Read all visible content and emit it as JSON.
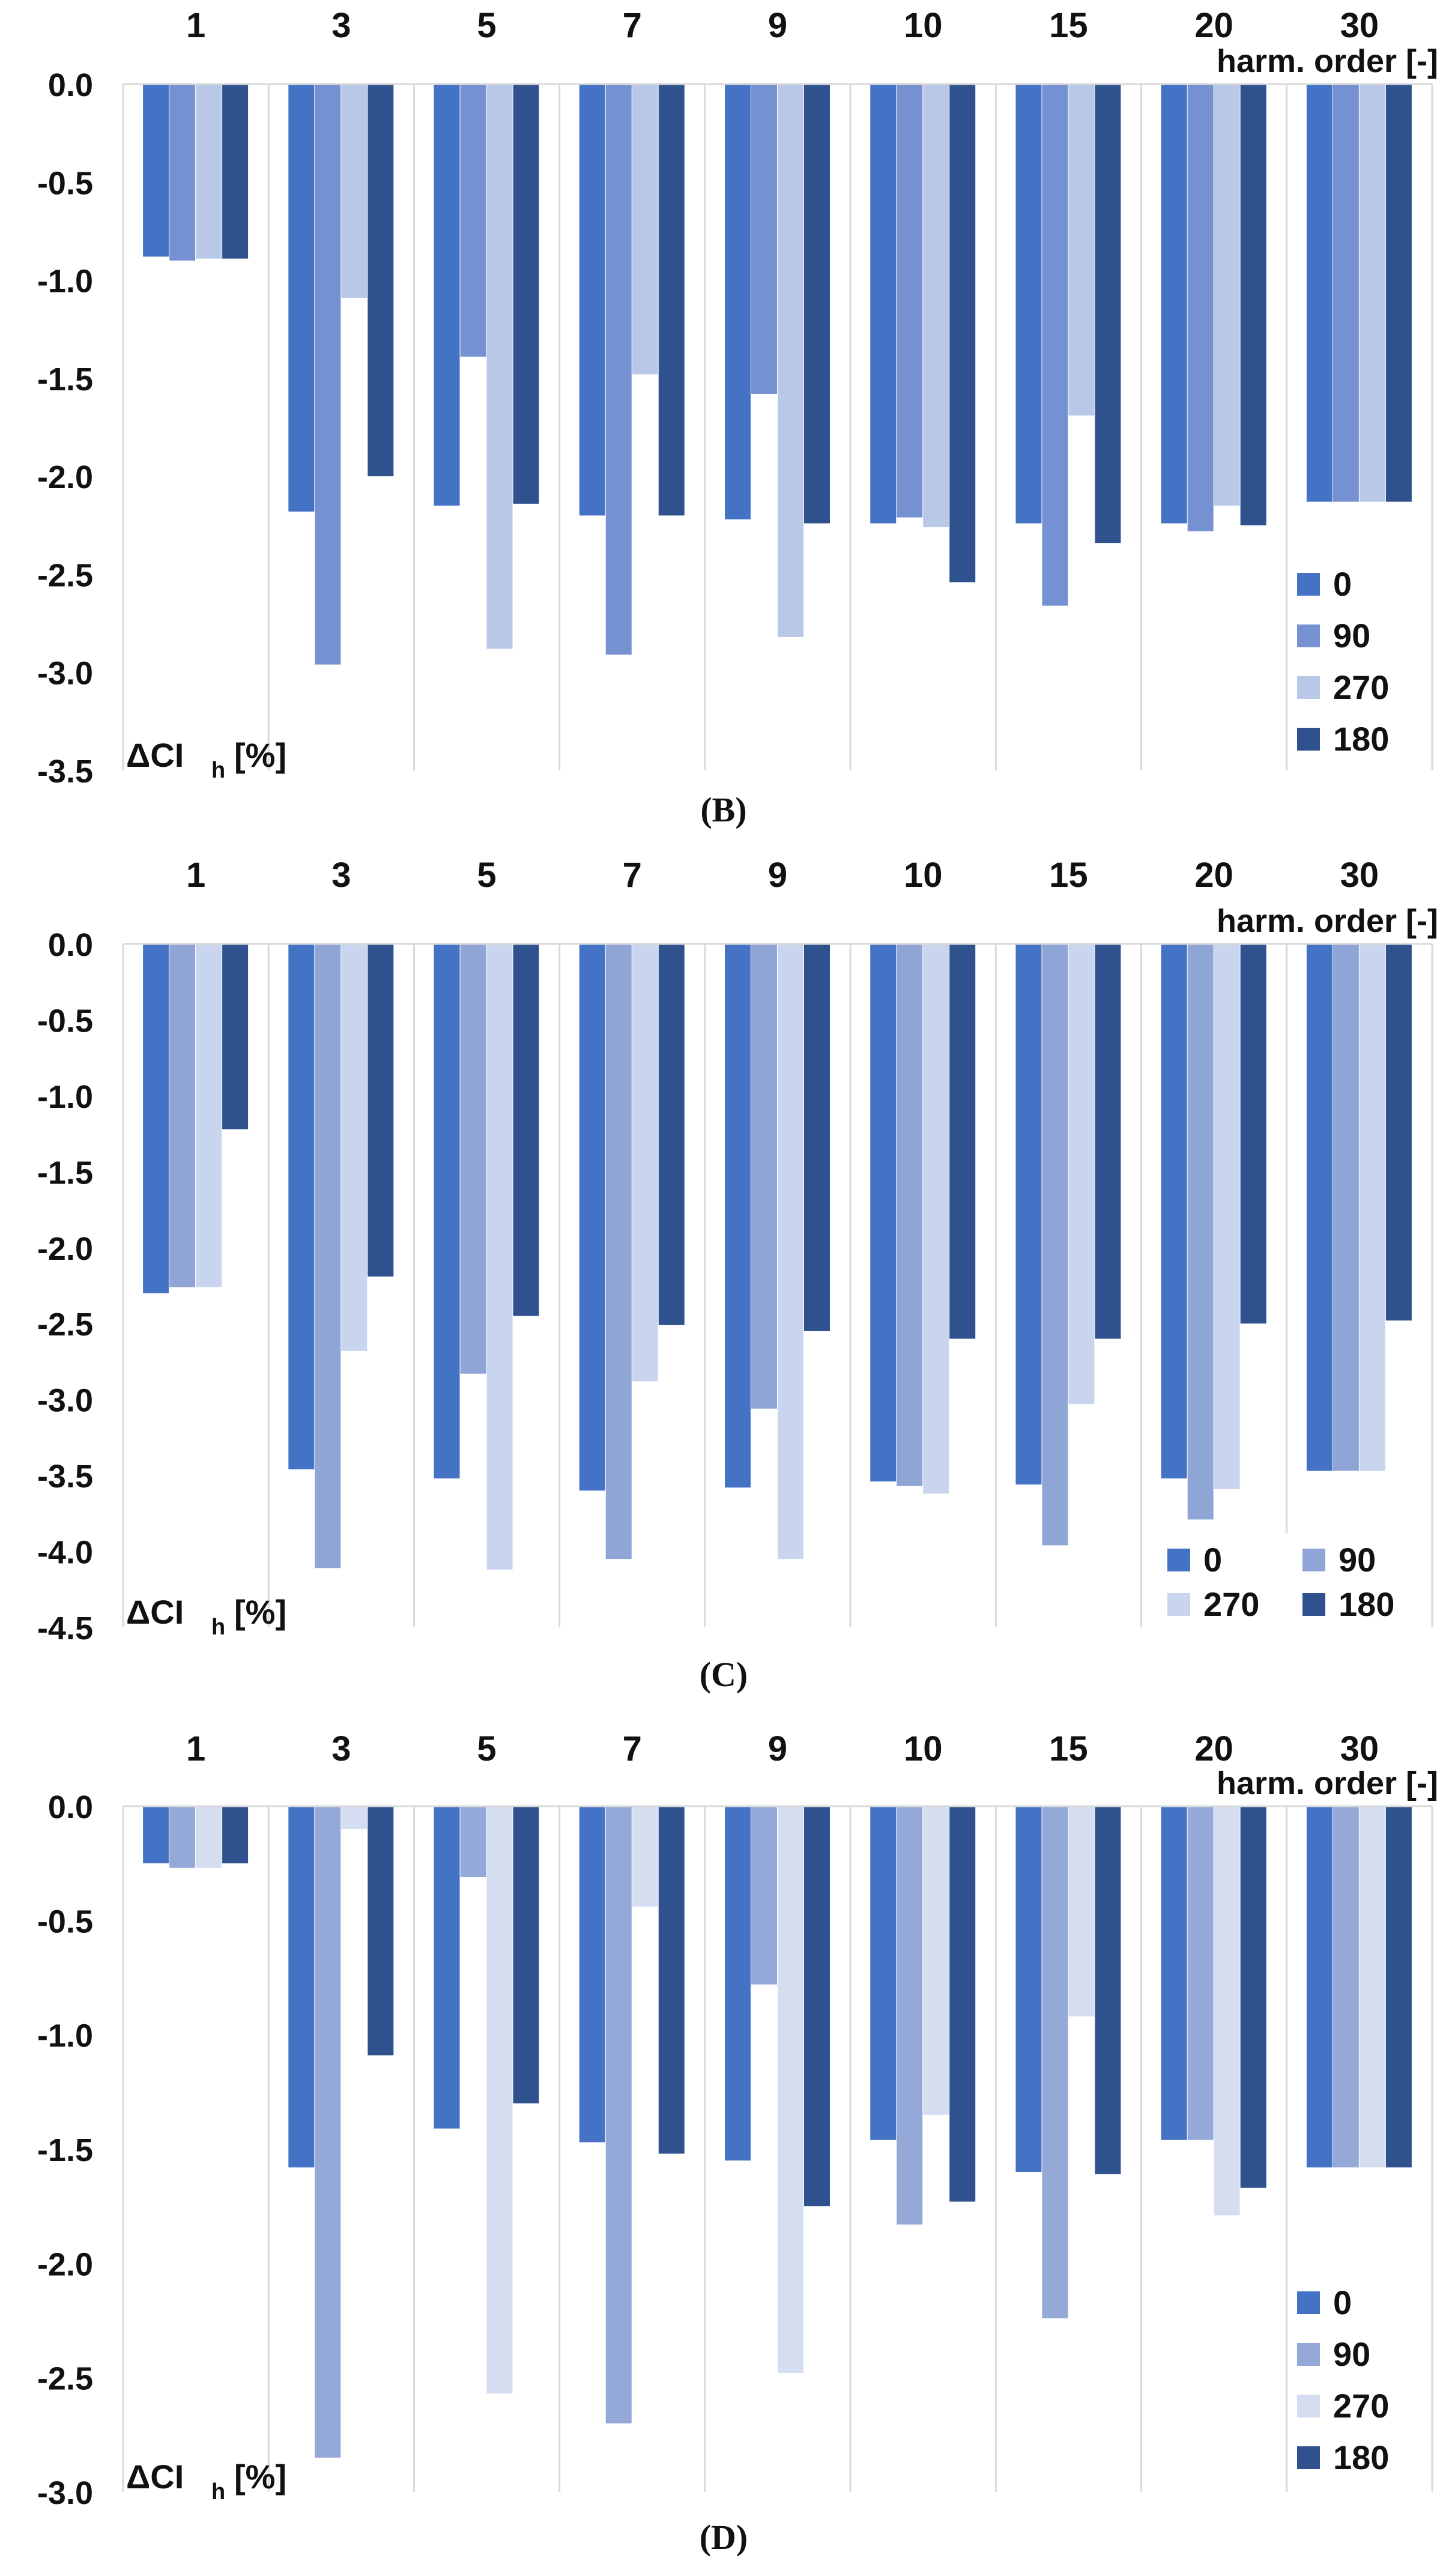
{
  "chart_data": [
    {
      "type": "bar",
      "caption": "(B)",
      "categories": [
        "1",
        "3",
        "5",
        "7",
        "9",
        "10",
        "15",
        "20",
        "30"
      ],
      "xlabel": "harm. order [-]",
      "ylabel_main": "ΔCI",
      "ylabel_sub": "h",
      "ylabel_unit": "[%]",
      "ylim": [
        -3.5,
        0.0
      ],
      "yticks": [
        "0.0",
        "-0.5",
        "-1.0",
        "-1.5",
        "-2.0",
        "-2.5",
        "-3.0",
        "-3.5"
      ],
      "legend_position": "bottom-right",
      "legend_layout": "column",
      "series": [
        {
          "name": "0",
          "color": "#4472C4",
          "values": [
            -0.88,
            -2.18,
            -2.15,
            -2.2,
            -2.22,
            -2.24,
            -2.24,
            -2.24,
            -2.13
          ]
        },
        {
          "name": "90",
          "color": "#7691D1",
          "values": [
            -0.9,
            -2.96,
            -1.39,
            -2.91,
            -1.58,
            -2.21,
            -2.66,
            -2.28,
            -2.13
          ]
        },
        {
          "name": "270",
          "color": "#B9C8E7",
          "values": [
            -0.89,
            -1.09,
            -2.88,
            -1.48,
            -2.82,
            -2.26,
            -1.69,
            -2.15,
            -2.13
          ]
        },
        {
          "name": "180",
          "color": "#2F528F",
          "values": [
            -0.89,
            -2.0,
            -2.14,
            -2.2,
            -2.24,
            -2.54,
            -2.34,
            -2.25,
            -2.13
          ]
        }
      ]
    },
    {
      "type": "bar",
      "caption": "(C)",
      "categories": [
        "1",
        "3",
        "5",
        "7",
        "9",
        "10",
        "15",
        "20",
        "30"
      ],
      "xlabel": "harm. order [-]",
      "ylabel_main": "ΔCI",
      "ylabel_sub": "h",
      "ylabel_unit": "[%]",
      "ylim": [
        -4.5,
        0.0
      ],
      "yticks": [
        "0.0",
        "-0.5",
        "-1.0",
        "-1.5",
        "-2.0",
        "-2.5",
        "-3.0",
        "-3.5",
        "-4.0",
        "-4.5"
      ],
      "legend_position": "bottom-right",
      "legend_layout": "grid",
      "series": [
        {
          "name": "0",
          "color": "#4472C4",
          "values": [
            -2.3,
            -3.46,
            -3.52,
            -3.6,
            -3.58,
            -3.54,
            -3.56,
            -3.52,
            -3.47
          ]
        },
        {
          "name": "90",
          "color": "#8FA5D6",
          "values": [
            -2.26,
            -4.11,
            -2.83,
            -4.05,
            -3.06,
            -3.57,
            -3.96,
            -3.79,
            -3.47
          ]
        },
        {
          "name": "270",
          "color": "#C9D5EE",
          "values": [
            -2.26,
            -2.68,
            -4.12,
            -2.88,
            -4.05,
            -3.62,
            -3.03,
            -3.59,
            -3.47
          ]
        },
        {
          "name": "180",
          "color": "#2F528F",
          "values": [
            -1.22,
            -2.19,
            -2.45,
            -2.51,
            -2.55,
            -2.6,
            -2.6,
            -2.5,
            -2.48
          ]
        }
      ]
    },
    {
      "type": "bar",
      "caption": "(D)",
      "categories": [
        "1",
        "3",
        "5",
        "7",
        "9",
        "10",
        "15",
        "20",
        "30"
      ],
      "xlabel": "harm. order [-]",
      "ylabel_main": "ΔCI",
      "ylabel_sub": "h",
      "ylabel_unit": "[%]",
      "ylim": [
        -3.0,
        0.0
      ],
      "yticks": [
        "0.0",
        "-0.5",
        "-1.0",
        "-1.5",
        "-2.0",
        "-2.5",
        "-3.0"
      ],
      "legend_position": "bottom-right",
      "legend_layout": "column",
      "series": [
        {
          "name": "0",
          "color": "#4472C4",
          "values": [
            -0.25,
            -1.58,
            -1.41,
            -1.47,
            -1.55,
            -1.46,
            -1.6,
            -1.46,
            -1.58
          ]
        },
        {
          "name": "90",
          "color": "#95A9D8",
          "values": [
            -0.27,
            -2.85,
            -0.31,
            -2.7,
            -0.78,
            -1.83,
            -2.24,
            -1.46,
            -1.58
          ]
        },
        {
          "name": "270",
          "color": "#D5DEF1",
          "values": [
            -0.27,
            -0.1,
            -2.57,
            -0.44,
            -2.48,
            -1.35,
            -0.92,
            -1.79,
            -1.58
          ]
        },
        {
          "name": "180",
          "color": "#2F528F",
          "values": [
            -0.25,
            -1.09,
            -1.3,
            -1.52,
            -1.75,
            -1.73,
            -1.61,
            -1.67,
            -1.58
          ]
        }
      ]
    }
  ]
}
